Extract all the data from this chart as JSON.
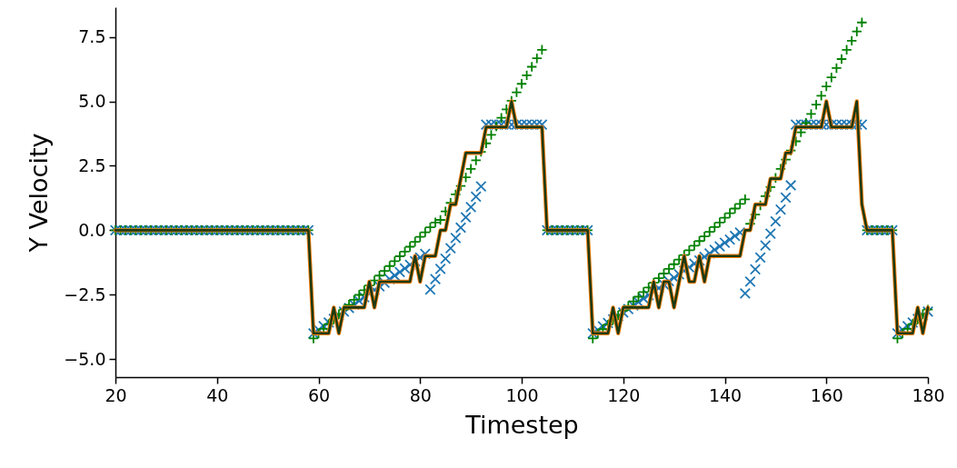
{
  "chart_data": {
    "type": "line",
    "xlabel": "Timestep",
    "ylabel": "Y Velocity",
    "x": [
      20,
      21,
      22,
      23,
      24,
      25,
      26,
      27,
      28,
      29,
      30,
      31,
      32,
      33,
      34,
      35,
      36,
      37,
      38,
      39,
      40,
      41,
      42,
      43,
      44,
      45,
      46,
      47,
      48,
      49,
      50,
      51,
      52,
      53,
      54,
      55,
      56,
      57,
      58,
      59,
      60,
      61,
      62,
      63,
      64,
      65,
      66,
      67,
      68,
      69,
      70,
      71,
      72,
      73,
      74,
      75,
      76,
      77,
      78,
      79,
      80,
      81,
      82,
      83,
      84,
      85,
      86,
      87,
      88,
      89,
      90,
      91,
      92,
      93,
      94,
      95,
      96,
      97,
      98,
      99,
      100,
      101,
      102,
      103,
      104,
      105,
      106,
      107,
      108,
      109,
      110,
      111,
      112,
      113,
      114,
      115,
      116,
      117,
      118,
      119,
      120,
      121,
      122,
      123,
      124,
      125,
      126,
      127,
      128,
      129,
      130,
      131,
      132,
      133,
      134,
      135,
      136,
      137,
      138,
      139,
      140,
      141,
      142,
      143,
      144,
      145,
      146,
      147,
      148,
      149,
      150,
      151,
      152,
      153,
      154,
      155,
      156,
      157,
      158,
      159,
      160,
      161,
      162,
      163,
      164,
      165,
      166,
      167,
      168,
      169,
      170,
      171,
      172,
      173,
      174,
      175,
      176,
      177,
      178,
      179,
      180
    ],
    "series": [
      {
        "type": "scatter",
        "marker": "x",
        "color": "#1f77b4",
        "values": [
          0,
          0,
          0,
          0,
          0,
          0,
          0,
          0,
          0,
          0,
          0,
          0,
          0,
          0,
          0,
          0,
          0,
          0,
          0,
          0,
          0,
          0,
          0,
          0,
          0,
          0,
          0,
          0,
          0,
          0,
          0,
          0,
          0,
          0,
          0,
          0,
          0,
          0,
          0,
          -4,
          -3.86,
          -3.72,
          -3.58,
          -3.44,
          -3.3,
          -3.16,
          -3.02,
          -2.88,
          -2.74,
          -2.6,
          -2.46,
          -2.32,
          -2.18,
          -2.04,
          -1.9,
          -1.76,
          -1.62,
          -1.48,
          -1.34,
          -1.2,
          -1.06,
          -0.92,
          -2.3,
          -1.9,
          -1.5,
          -1.1,
          -0.7,
          -0.3,
          0.1,
          0.5,
          0.9,
          1.3,
          1.7,
          4.1,
          4.1,
          4.1,
          4.1,
          4.1,
          4.1,
          4.1,
          4.1,
          4.1,
          4.1,
          4.1,
          4.1,
          0,
          0,
          0,
          0,
          0,
          0,
          0,
          0,
          0,
          -4,
          -3.87,
          -3.73,
          -3.6,
          -3.46,
          -3.33,
          -3.19,
          -3.06,
          -2.92,
          -2.79,
          -2.65,
          -2.52,
          -2.38,
          -2.25,
          -2.11,
          -1.98,
          -1.84,
          -1.71,
          -1.57,
          -1.44,
          -1.3,
          -1.17,
          -1.03,
          -0.9,
          -0.76,
          -0.63,
          -0.49,
          -0.36,
          -0.22,
          -0.09,
          -2.45,
          -1.99,
          -1.52,
          -1.06,
          -0.59,
          -0.13,
          0.34,
          0.8,
          1.27,
          1.74,
          4.1,
          4.1,
          4.1,
          4.1,
          4.1,
          4.1,
          4.1,
          4.1,
          4.1,
          4.1,
          4.1,
          4.1,
          4.1,
          4.1,
          0,
          0,
          0,
          0,
          0,
          0,
          -4,
          -3.86,
          -3.72,
          -3.58,
          -3.44,
          -3.3,
          -3.16
        ]
      },
      {
        "type": "scatter",
        "marker": "cross",
        "color": "#008000",
        "values": [
          0,
          0,
          0,
          0,
          0,
          0,
          0,
          0,
          0,
          0,
          0,
          0,
          0,
          0,
          0,
          0,
          0,
          0,
          0,
          0,
          0,
          0,
          0,
          0,
          0,
          0,
          0,
          0,
          0,
          0,
          0,
          0,
          0,
          0,
          0,
          0,
          0,
          0,
          0,
          -4.2,
          -4.01,
          -3.83,
          -3.64,
          -3.45,
          -3.26,
          -3.08,
          -2.89,
          -2.7,
          -2.51,
          -2.33,
          -2.14,
          -1.95,
          -1.76,
          -1.58,
          -1.39,
          -1.2,
          -1.01,
          -0.83,
          -0.64,
          -0.45,
          -0.26,
          -0.08,
          0.11,
          0.3,
          0.4,
          0.73,
          1.06,
          1.39,
          1.72,
          2.05,
          2.38,
          2.71,
          3.04,
          3.37,
          3.7,
          4.03,
          4.36,
          4.69,
          5.02,
          5.35,
          5.68,
          6.01,
          6.34,
          6.67,
          7.0,
          0,
          0,
          0,
          0,
          0,
          0,
          0,
          0,
          0,
          -4.2,
          -4.02,
          -3.84,
          -3.66,
          -3.48,
          -3.3,
          -3.12,
          -2.94,
          -2.76,
          -2.58,
          -2.4,
          -2.22,
          -2.04,
          -1.86,
          -1.68,
          -1.5,
          -1.32,
          -1.14,
          -0.96,
          -0.78,
          -0.6,
          -0.42,
          -0.24,
          -0.06,
          0.12,
          0.3,
          0.48,
          0.66,
          0.84,
          1.02,
          1.2,
          0.25,
          0.61,
          0.96,
          1.32,
          1.67,
          2.03,
          2.38,
          2.74,
          3.09,
          3.45,
          3.8,
          4.16,
          4.51,
          4.87,
          5.22,
          5.58,
          5.93,
          6.29,
          6.64,
          7.0,
          7.35,
          7.71,
          8.06,
          0,
          0,
          0,
          0,
          0,
          0,
          -4.2,
          -4.01,
          -3.83,
          -3.64,
          -3.45,
          -3.26,
          -3.08
        ]
      },
      {
        "type": "line",
        "color": "#ff7f0e",
        "values": [
          0,
          0,
          0,
          0,
          0,
          0,
          0,
          0,
          0,
          0,
          0,
          0,
          0,
          0,
          0,
          0,
          0,
          0,
          0,
          0,
          0,
          0,
          0,
          0,
          0,
          0,
          0,
          0,
          0,
          0,
          0,
          0,
          0,
          0,
          0,
          0,
          0,
          0,
          0,
          -4,
          -4,
          -4,
          -4,
          -3,
          -4,
          -3,
          -3,
          -3,
          -3,
          -3,
          -2,
          -3,
          -2,
          -2,
          -2,
          -2,
          -2,
          -2,
          -2,
          -1,
          -2,
          -1,
          -1,
          -1,
          0,
          0,
          1,
          1,
          2,
          3,
          3,
          3,
          3,
          4,
          4,
          4,
          4,
          4,
          5,
          4,
          4,
          4,
          4,
          4,
          4,
          0,
          0,
          0,
          0,
          0,
          0,
          0,
          0,
          0,
          -4,
          -4,
          -4,
          -4,
          -3,
          -4,
          -3,
          -3,
          -3,
          -3,
          -3,
          -3,
          -2,
          -3,
          -2,
          -2,
          -3,
          -2,
          -1,
          -2,
          -2,
          -1,
          -2,
          -1,
          -1,
          -1,
          -1,
          -1,
          -1,
          -1,
          0,
          0,
          1,
          1,
          1,
          2,
          2,
          2,
          3,
          3,
          4,
          4,
          4,
          4,
          4,
          4,
          5,
          4,
          4,
          4,
          4,
          4,
          5,
          1,
          0,
          0,
          0,
          0,
          0,
          0,
          -4,
          -4,
          -4,
          -4,
          -3,
          -4,
          -3
        ]
      },
      {
        "type": "line",
        "color": "#1c3a12",
        "values": [
          0,
          0,
          0,
          0,
          0,
          0,
          0,
          0,
          0,
          0,
          0,
          0,
          0,
          0,
          0,
          0,
          0,
          0,
          0,
          0,
          0,
          0,
          0,
          0,
          0,
          0,
          0,
          0,
          0,
          0,
          0,
          0,
          0,
          0,
          0,
          0,
          0,
          0,
          0,
          -4,
          -4,
          -4,
          -4,
          -3,
          -4,
          -3,
          -3,
          -3,
          -3,
          -3,
          -2,
          -3,
          -2,
          -2,
          -2,
          -2,
          -2,
          -2,
          -2,
          -1,
          -2,
          -1,
          -1,
          -1,
          0,
          0,
          1,
          1,
          2,
          3,
          3,
          3,
          3,
          4,
          4,
          4,
          4,
          4,
          5,
          4,
          4,
          4,
          4,
          4,
          4,
          0,
          0,
          0,
          0,
          0,
          0,
          0,
          0,
          0,
          -4,
          -4,
          -4,
          -4,
          -3,
          -4,
          -3,
          -3,
          -3,
          -3,
          -3,
          -3,
          -2,
          -3,
          -2,
          -2,
          -3,
          -2,
          -1,
          -2,
          -2,
          -1,
          -2,
          -1,
          -1,
          -1,
          -1,
          -1,
          -1,
          -1,
          0,
          0,
          1,
          1,
          1,
          2,
          2,
          2,
          3,
          3,
          4,
          4,
          4,
          4,
          4,
          4,
          5,
          4,
          4,
          4,
          4,
          4,
          5,
          1,
          0,
          0,
          0,
          0,
          0,
          0,
          -4,
          -4,
          -4,
          -4,
          -3,
          -4,
          -3
        ]
      }
    ],
    "xlim": [
      20,
      180
    ],
    "xticks": [
      20,
      40,
      60,
      80,
      100,
      120,
      140,
      160,
      180
    ],
    "ylim": [
      -5.7,
      8.65
    ],
    "yticks": [
      {
        "value": -5,
        "label": "−5.0"
      },
      {
        "value": -2.5,
        "label": "−2.5"
      },
      {
        "value": 0,
        "label": "0.0"
      },
      {
        "value": 2.5,
        "label": "2.5"
      },
      {
        "value": 5,
        "label": "5.0"
      },
      {
        "value": 7.5,
        "label": "7.5"
      }
    ],
    "grid": false
  }
}
